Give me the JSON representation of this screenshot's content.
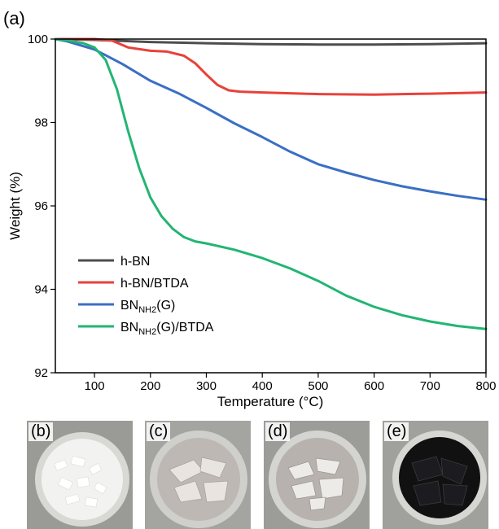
{
  "panel_a_label": "(a)",
  "chart_data": {
    "type": "line",
    "xlabel": "Temperature (°C)",
    "ylabel": "Weight (%)",
    "xlim": [
      30,
      800
    ],
    "ylim": [
      92,
      100
    ],
    "xticks": [
      100,
      200,
      300,
      400,
      500,
      600,
      700,
      800
    ],
    "yticks": [
      92,
      94,
      96,
      98,
      100
    ],
    "legend_position": "bottom-left",
    "grid": false,
    "series": [
      {
        "name": "h-BN",
        "name_base": "h-BN",
        "name_sub": "",
        "name_tail": "",
        "color": "#4d4d4d",
        "x": [
          30,
          100,
          200,
          300,
          400,
          500,
          600,
          700,
          800
        ],
        "y": [
          100,
          99.98,
          99.93,
          99.9,
          99.88,
          99.87,
          99.87,
          99.88,
          99.9
        ]
      },
      {
        "name": "h-BN/BTDA",
        "name_base": "h-BN/BTDA",
        "name_sub": "",
        "name_tail": "",
        "color": "#e8413b",
        "x": [
          30,
          100,
          130,
          160,
          200,
          230,
          260,
          280,
          300,
          320,
          340,
          360,
          400,
          500,
          600,
          700,
          800
        ],
        "y": [
          100,
          100,
          99.97,
          99.8,
          99.72,
          99.7,
          99.6,
          99.42,
          99.15,
          98.9,
          98.77,
          98.74,
          98.72,
          98.68,
          98.67,
          98.69,
          98.72
        ]
      },
      {
        "name": "BNNH2(G)",
        "name_base": "BN",
        "name_sub": "NH2",
        "name_tail": "(G)",
        "color": "#3a6fc4",
        "x": [
          30,
          50,
          100,
          150,
          200,
          250,
          300,
          350,
          400,
          450,
          500,
          550,
          600,
          650,
          700,
          750,
          800
        ],
        "y": [
          100,
          99.95,
          99.75,
          99.4,
          99.0,
          98.7,
          98.35,
          97.98,
          97.65,
          97.3,
          97.0,
          96.8,
          96.62,
          96.47,
          96.35,
          96.24,
          96.15
        ]
      },
      {
        "name": "BNNH2(G)/BTDA",
        "name_base": "BN",
        "name_sub": "NH2",
        "name_tail": "(G)/BTDA",
        "color": "#22b573",
        "x": [
          30,
          50,
          80,
          100,
          120,
          140,
          160,
          180,
          200,
          220,
          240,
          260,
          280,
          300,
          350,
          400,
          450,
          500,
          550,
          600,
          650,
          700,
          750,
          800
        ],
        "y": [
          100,
          99.97,
          99.9,
          99.8,
          99.5,
          98.8,
          97.8,
          96.9,
          96.2,
          95.75,
          95.45,
          95.25,
          95.15,
          95.1,
          94.95,
          94.75,
          94.5,
          94.2,
          93.85,
          93.58,
          93.38,
          93.23,
          93.12,
          93.05
        ]
      }
    ]
  },
  "photos": [
    {
      "label": "(b)",
      "content": "white-powder"
    },
    {
      "label": "(c)",
      "content": "light-flakes"
    },
    {
      "label": "(d)",
      "content": "gray-flakes"
    },
    {
      "label": "(e)",
      "content": "black-flakes"
    }
  ]
}
